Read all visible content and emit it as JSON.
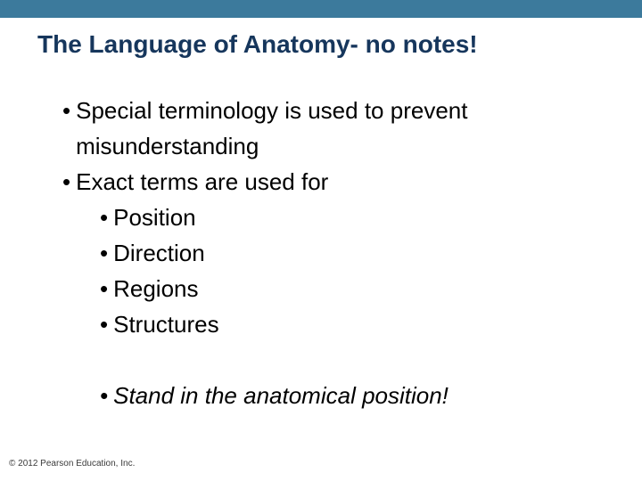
{
  "colors": {
    "top_bar": "#3c7a9c",
    "title": "#16365c",
    "body_text": "#000000",
    "background": "#ffffff",
    "copyright": "#3a3a3a"
  },
  "typography": {
    "title_fontsize": 28,
    "title_weight": "bold",
    "body_fontsize": 26,
    "copyright_fontsize": 10
  },
  "layout": {
    "top_bar_height": 20,
    "indent_level1": 20,
    "indent_level2": 62,
    "line_height": 40
  },
  "title": "The Language of Anatomy- no notes!",
  "bullets": {
    "l1_a": "Special terminology is used to prevent misunderstanding",
    "l1_b": "Exact terms are used for",
    "l2_a": "Position",
    "l2_b": "Direction",
    "l2_c": "Regions",
    "l2_d": "Structures",
    "l1_c": "Stand in the anatomical position!"
  },
  "bullet_char": "•",
  "copyright": "© 2012 Pearson Education, Inc."
}
